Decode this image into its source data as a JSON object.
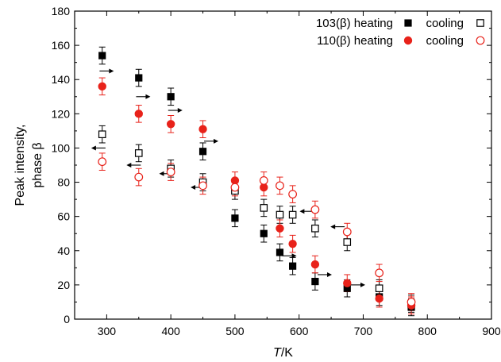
{
  "chart_data": {
    "type": "scatter",
    "xlabel": {
      "italic": "T",
      "rest": "/K"
    },
    "ylabel": [
      "Peak intensity,",
      "phase β"
    ],
    "xlim": [
      250,
      900
    ],
    "ylim": [
      0,
      180
    ],
    "xticks": [
      300,
      400,
      500,
      600,
      700,
      800,
      900
    ],
    "yticks": [
      0,
      20,
      40,
      60,
      80,
      100,
      120,
      140,
      160,
      180
    ],
    "grid": false,
    "legend_placement": "top-right",
    "legend": {
      "rows": [
        {
          "label": "103(β) heating",
          "heating_series": 0,
          "cooling_label": "cooling",
          "cooling_series": 1
        },
        {
          "label": "110(β) heating",
          "heating_series": 2,
          "cooling_label": "cooling",
          "cooling_series": 3
        }
      ]
    },
    "series": [
      {
        "marker": "square-filled",
        "color": "#000000",
        "points": [
          {
            "x": 293,
            "y": 154,
            "err": 5
          },
          {
            "x": 350,
            "y": 141,
            "err": 5
          },
          {
            "x": 400,
            "y": 130,
            "err": 5
          },
          {
            "x": 450,
            "y": 98,
            "err": 5
          },
          {
            "x": 500,
            "y": 59,
            "err": 5
          },
          {
            "x": 545,
            "y": 50,
            "err": 5
          },
          {
            "x": 570,
            "y": 39,
            "err": 5
          },
          {
            "x": 590,
            "y": 31,
            "err": 5
          },
          {
            "x": 625,
            "y": 22,
            "err": 5
          },
          {
            "x": 675,
            "y": 18,
            "err": 5
          },
          {
            "x": 725,
            "y": 13,
            "err": 5
          },
          {
            "x": 775,
            "y": 7,
            "err": 5
          }
        ]
      },
      {
        "marker": "square-open",
        "color": "#000000",
        "points": [
          {
            "x": 293,
            "y": 108,
            "err": 5
          },
          {
            "x": 350,
            "y": 97,
            "err": 5
          },
          {
            "x": 400,
            "y": 88,
            "err": 5
          },
          {
            "x": 450,
            "y": 80,
            "err": 5
          },
          {
            "x": 500,
            "y": 75,
            "err": 5
          },
          {
            "x": 545,
            "y": 65,
            "err": 5
          },
          {
            "x": 570,
            "y": 61,
            "err": 5
          },
          {
            "x": 590,
            "y": 61,
            "err": 5
          },
          {
            "x": 625,
            "y": 53,
            "err": 5
          },
          {
            "x": 675,
            "y": 45,
            "err": 5
          },
          {
            "x": 725,
            "y": 18,
            "err": 5
          },
          {
            "x": 775,
            "y": 9,
            "err": 5
          }
        ]
      },
      {
        "marker": "circle-filled",
        "color": "#e8221a",
        "points": [
          {
            "x": 293,
            "y": 136,
            "err": 5
          },
          {
            "x": 350,
            "y": 120,
            "err": 5
          },
          {
            "x": 400,
            "y": 114,
            "err": 5
          },
          {
            "x": 450,
            "y": 111,
            "err": 5
          },
          {
            "x": 500,
            "y": 81,
            "err": 5
          },
          {
            "x": 545,
            "y": 77,
            "err": 5
          },
          {
            "x": 570,
            "y": 53,
            "err": 5
          },
          {
            "x": 590,
            "y": 44,
            "err": 5
          },
          {
            "x": 625,
            "y": 32,
            "err": 5
          },
          {
            "x": 675,
            "y": 21,
            "err": 5
          },
          {
            "x": 725,
            "y": 12,
            "err": 5
          },
          {
            "x": 775,
            "y": 8,
            "err": 5
          }
        ]
      },
      {
        "marker": "circle-open",
        "color": "#e8221a",
        "points": [
          {
            "x": 293,
            "y": 92,
            "err": 5
          },
          {
            "x": 350,
            "y": 83,
            "err": 5
          },
          {
            "x": 400,
            "y": 86,
            "err": 5
          },
          {
            "x": 450,
            "y": 78,
            "err": 5
          },
          {
            "x": 500,
            "y": 77,
            "err": 5
          },
          {
            "x": 545,
            "y": 81,
            "err": 5
          },
          {
            "x": 570,
            "y": 78,
            "err": 5
          },
          {
            "x": 590,
            "y": 73,
            "err": 5
          },
          {
            "x": 625,
            "y": 64,
            "err": 5
          },
          {
            "x": 675,
            "y": 51,
            "err": 5
          },
          {
            "x": 725,
            "y": 27,
            "err": 5
          },
          {
            "x": 775,
            "y": 10,
            "err": 5
          }
        ]
      }
    ],
    "annotations": [
      {
        "type": "arrow",
        "direction": "right",
        "x": 300,
        "y": 145
      },
      {
        "type": "arrow",
        "direction": "right",
        "x": 357,
        "y": 130
      },
      {
        "type": "arrow",
        "direction": "right",
        "x": 407,
        "y": 122
      },
      {
        "type": "arrow",
        "direction": "right",
        "x": 463,
        "y": 104
      },
      {
        "type": "arrow",
        "direction": "left",
        "x": 287,
        "y": 100
      },
      {
        "type": "arrow",
        "direction": "left",
        "x": 342,
        "y": 90
      },
      {
        "type": "arrow",
        "direction": "left",
        "x": 393,
        "y": 85
      },
      {
        "type": "arrow",
        "direction": "left",
        "x": 442,
        "y": 77
      },
      {
        "type": "arrow",
        "direction": "left",
        "x": 612,
        "y": 63
      },
      {
        "type": "arrow",
        "direction": "left",
        "x": 660,
        "y": 54
      },
      {
        "type": "arrow",
        "direction": "right",
        "x": 585,
        "y": 37
      },
      {
        "type": "arrow",
        "direction": "right",
        "x": 640,
        "y": 26
      },
      {
        "type": "arrow",
        "direction": "right",
        "x": 692,
        "y": 20
      }
    ]
  }
}
